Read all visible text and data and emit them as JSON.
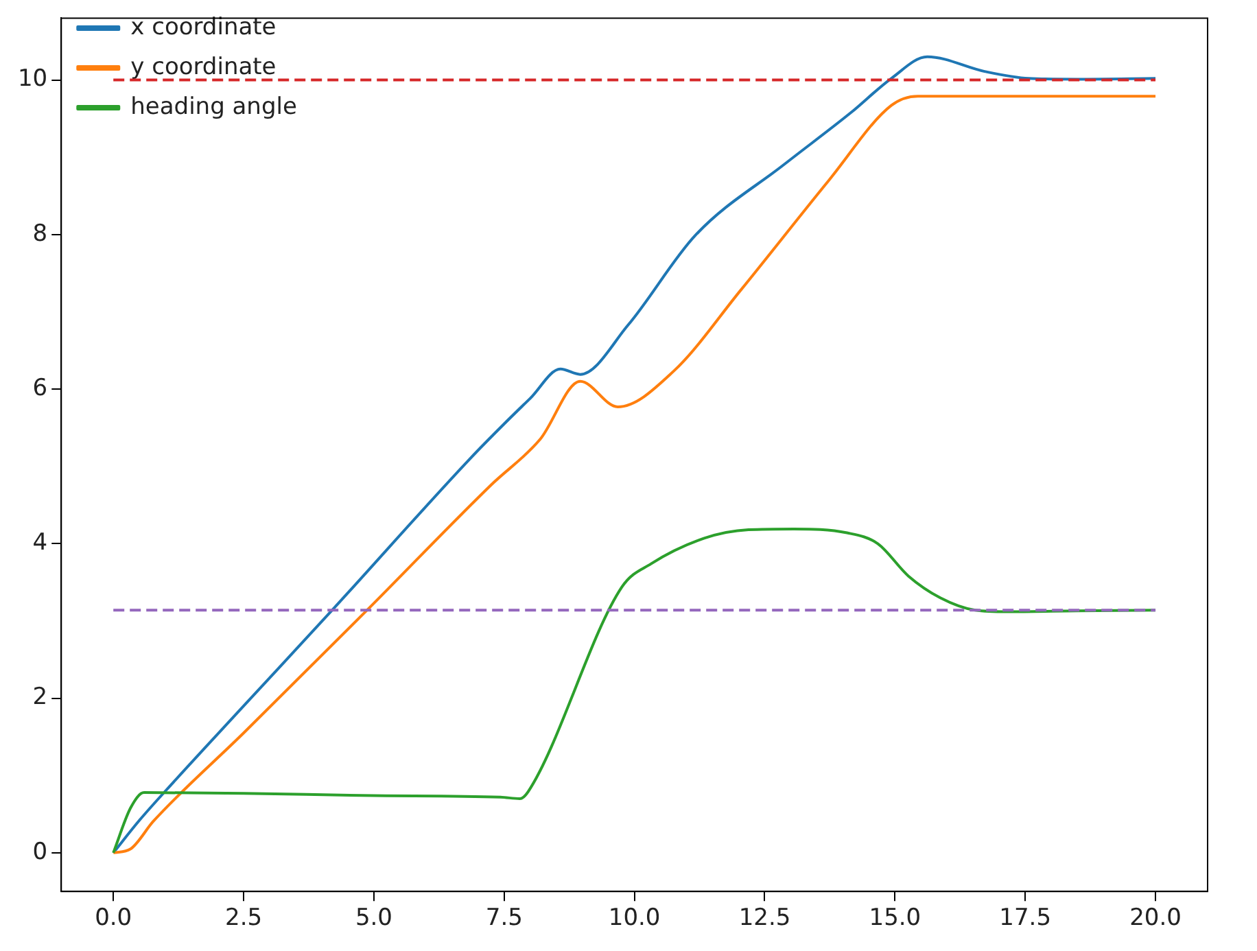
{
  "chart_data": {
    "type": "line",
    "legend": "top left",
    "grid": false,
    "line_style": "solid",
    "marker": "none",
    "xlim": [
      -1,
      21
    ],
    "ylim": [
      -0.5,
      10.8
    ],
    "xticks": [
      {
        "value": 0,
        "label": "0.0"
      },
      {
        "value": 2.5,
        "label": "2.5"
      },
      {
        "value": 5,
        "label": "5.0"
      },
      {
        "value": 7.5,
        "label": "7.5"
      },
      {
        "value": 10,
        "label": "10.0"
      },
      {
        "value": 12.5,
        "label": "12.5"
      },
      {
        "value": 15,
        "label": "15.0"
      },
      {
        "value": 17.5,
        "label": "17.5"
      },
      {
        "value": 20,
        "label": "20.0"
      }
    ],
    "yticks": [
      0,
      2,
      4,
      6,
      8,
      10
    ],
    "series": [
      {
        "name": "x coordinate",
        "color": "#1f77b4",
        "x": [
          0,
          0.5,
          1,
          2.5,
          4.2,
          6.86,
          7.5,
          8.0,
          8.58,
          8.96,
          9.88,
          11.17,
          12.88,
          14.16,
          14.93,
          15.62,
          16.72,
          17.57,
          18.5,
          20
        ],
        "values": [
          0,
          0.42,
          0.8,
          1.9,
          3.14,
          5.11,
          5.55,
          5.88,
          6.26,
          6.19,
          6.83,
          7.99,
          8.91,
          9.58,
          10.02,
          10.3,
          10.11,
          10.02,
          10.01,
          10.02
        ]
      },
      {
        "name": "y coordinate",
        "color": "#ff7f0e",
        "x": [
          0,
          0.33,
          0.77,
          2.5,
          4.87,
          7.25,
          8.19,
          8.96,
          9.68,
          10.75,
          12.04,
          13.73,
          14.93,
          15.44,
          17,
          20
        ],
        "values": [
          0,
          0.05,
          0.41,
          1.55,
          3.14,
          4.76,
          5.35,
          6.1,
          5.77,
          6.23,
          7.28,
          8.7,
          9.67,
          9.79,
          9.79,
          9.79
        ]
      },
      {
        "name": "heading angle",
        "color": "#2ca02c",
        "x": [
          0,
          0.33,
          0.59,
          2.5,
          5,
          7.43,
          7.8,
          7.96,
          9.76,
          10.32,
          11.34,
          12.19,
          13.06,
          14.08,
          14.67,
          15.26,
          15.87,
          16.54,
          17.16,
          18.5,
          20
        ],
        "values": [
          0,
          0.58,
          0.78,
          0.77,
          0.74,
          0.72,
          0.7,
          0.79,
          3.44,
          3.74,
          4.07,
          4.18,
          4.19,
          4.14,
          4.0,
          3.58,
          3.3,
          3.14,
          3.12,
          3.13,
          3.14
        ]
      },
      {
        "color": "#d62728",
        "line_style": "dashed",
        "x": [
          0,
          20
        ],
        "values": [
          10,
          10
        ]
      },
      {
        "color": "#9467bd",
        "line_style": "dashed",
        "x": [
          0,
          20
        ],
        "values": [
          3.14,
          3.14
        ]
      }
    ]
  }
}
